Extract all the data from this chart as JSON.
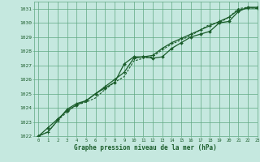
{
  "xlabel": "Graphe pression niveau de la mer (hPa)",
  "ylim": [
    1022,
    1031.5
  ],
  "xlim": [
    -0.5,
    23
  ],
  "yticks": [
    1022,
    1023,
    1024,
    1025,
    1026,
    1027,
    1028,
    1029,
    1030,
    1031
  ],
  "xticks": [
    0,
    1,
    2,
    3,
    4,
    5,
    6,
    7,
    8,
    9,
    10,
    11,
    12,
    13,
    14,
    15,
    16,
    17,
    18,
    19,
    20,
    21,
    22,
    23
  ],
  "bg_color": "#c5e8df",
  "grid_color": "#60a882",
  "line_color": "#1a5c2a",
  "line1_y": [
    1022.0,
    1022.6,
    1023.2,
    1023.8,
    1024.2,
    1024.5,
    1025.0,
    1025.4,
    1025.8,
    1027.1,
    1027.6,
    1027.6,
    1027.5,
    1027.6,
    1028.2,
    1028.6,
    1029.0,
    1029.2,
    1029.4,
    1030.0,
    1030.1,
    1030.8,
    1031.1,
    1031.1
  ],
  "line2_y": [
    1022.0,
    1022.3,
    1023.1,
    1023.9,
    1024.3,
    1024.5,
    1025.0,
    1025.5,
    1026.0,
    1026.5,
    1027.5,
    1027.6,
    1027.7,
    1028.2,
    1028.6,
    1028.9,
    1029.2,
    1029.5,
    1029.8,
    1030.1,
    1030.4,
    1030.9,
    1031.05,
    1031.05
  ],
  "line3_y": [
    1022.0,
    1022.3,
    1023.1,
    1023.7,
    1024.2,
    1024.4,
    1024.7,
    1025.3,
    1025.8,
    1026.2,
    1027.3,
    1027.5,
    1027.6,
    1028.1,
    1028.5,
    1028.8,
    1029.1,
    1029.5,
    1029.9,
    1030.0,
    1030.4,
    1031.0,
    1031.1,
    1031.0
  ]
}
